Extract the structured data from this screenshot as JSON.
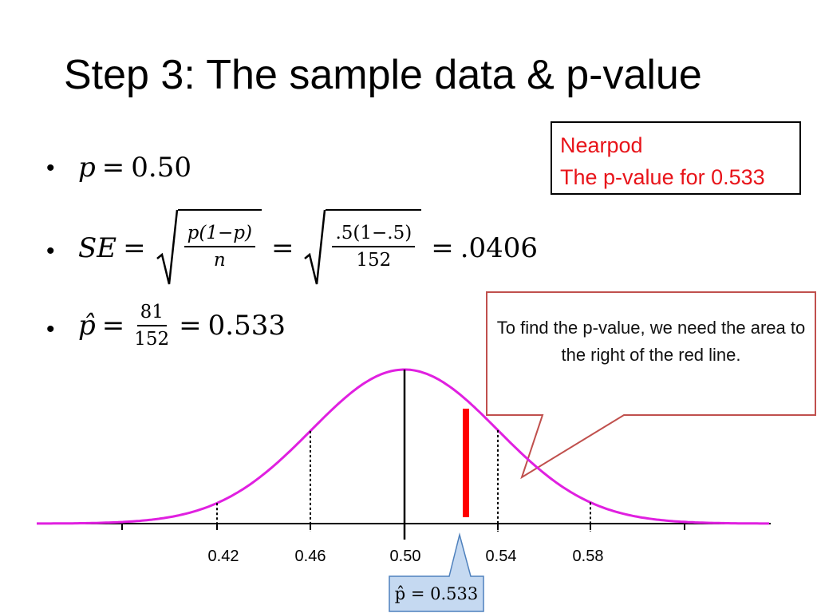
{
  "title": "Step 3: The sample data & p-value",
  "bullet_char": "•",
  "equations": {
    "p0": {
      "lhs": "p",
      "eq": "=",
      "value": "0.50"
    },
    "se": {
      "lhs": "SE",
      "eq": "=",
      "frac1_num": "p(1−p)",
      "frac1_den": "n",
      "frac2_num": ".5(1−.5)",
      "frac2_den": "152",
      "result": ".0406"
    },
    "phat": {
      "lhs": "p̂",
      "eq": "=",
      "num": "81",
      "den": "152",
      "result": "0.533"
    }
  },
  "nearpod": {
    "line1": "Nearpod",
    "line2": "The p-value for 0.533",
    "color": "#e8141a"
  },
  "callout": {
    "text": "To find the p-value, we need the area to the right of the red line."
  },
  "axis": {
    "tick_labels": [
      "0.42",
      "0.46",
      "0.50",
      "0.54",
      "0.58"
    ]
  },
  "phat_marker": {
    "label": "p̂ = 0.533",
    "value": 0.533
  },
  "colors": {
    "curve": "#e020e0",
    "red_line": "#ff0000",
    "callout_border": "#c0504d",
    "marker_fill": "#c5d9f1",
    "marker_border": "#4f81bd"
  }
}
